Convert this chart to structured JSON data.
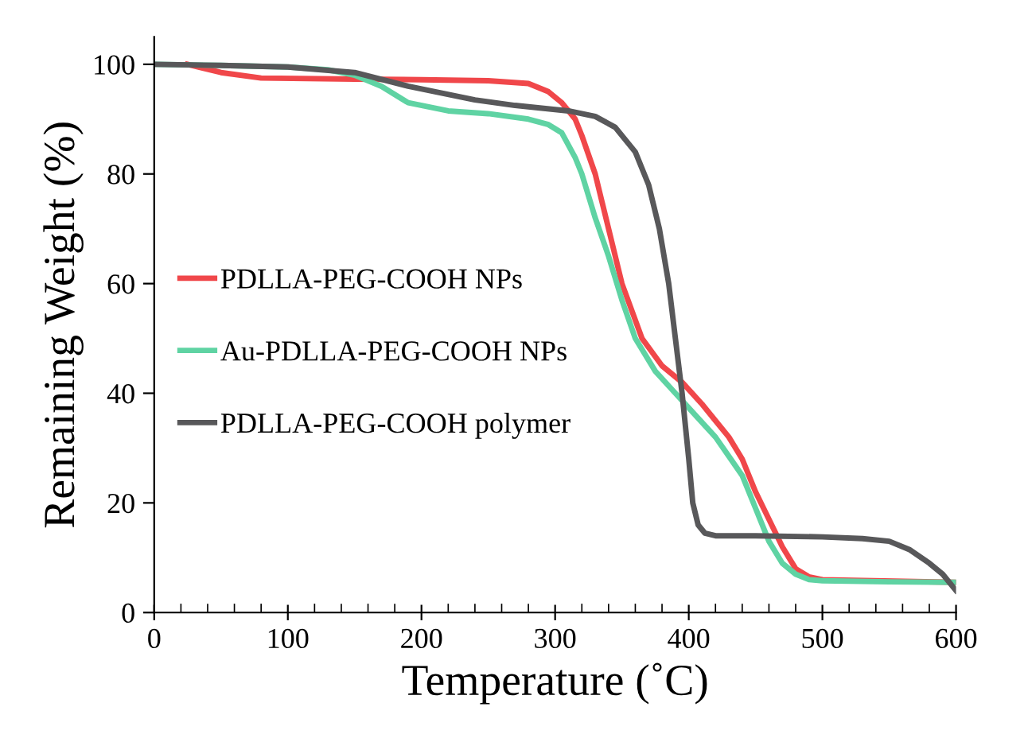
{
  "chart_data": {
    "type": "line",
    "xlabel": "Temperature (˚C)",
    "ylabel": "Remaining Weight (%)",
    "xlim": [
      0,
      600
    ],
    "ylim": [
      0,
      105
    ],
    "xticks": [
      0,
      100,
      200,
      300,
      400,
      500,
      600
    ],
    "yticks": [
      0,
      20,
      40,
      60,
      80,
      100
    ],
    "grid": false,
    "legend": "left",
    "marker": "none",
    "line_style": "solid",
    "series": [
      {
        "name": "PDLLA-PEG-COOH NPs",
        "color": "#f0474a",
        "x": [
          25,
          50,
          80,
          150,
          200,
          250,
          280,
          295,
          305,
          315,
          320,
          330,
          335,
          350,
          365,
          380,
          395,
          410,
          420,
          430,
          440,
          450,
          460,
          470,
          480,
          490,
          500,
          600
        ],
        "values": [
          100,
          98.5,
          97.5,
          97.3,
          97.2,
          97,
          96.5,
          95,
          93,
          90,
          87,
          80,
          75,
          60,
          50,
          45,
          42,
          38,
          35,
          32,
          28,
          22,
          17,
          12,
          8,
          6.5,
          6,
          5.5
        ]
      },
      {
        "name": "Au-PDLLA-PEG-COOH NPs",
        "color": "#5fd3a3",
        "x": [
          0,
          50,
          100,
          130,
          150,
          170,
          190,
          220,
          250,
          280,
          295,
          305,
          315,
          320,
          330,
          340,
          350,
          360,
          375,
          390,
          405,
          420,
          430,
          440,
          450,
          460,
          470,
          480,
          490,
          500,
          550,
          600
        ],
        "values": [
          100,
          99.8,
          99.5,
          99,
          98,
          96,
          93,
          91.5,
          91,
          90,
          89,
          87.5,
          83,
          80,
          72,
          65,
          57,
          50,
          44,
          40,
          36,
          32,
          28.5,
          25,
          19,
          13,
          9,
          7,
          6,
          5.8,
          5.6,
          5.5
        ]
      },
      {
        "name": "PDLLA-PEG-COOH polymer",
        "color": "#58585a",
        "x": [
          0,
          50,
          100,
          150,
          190,
          240,
          270,
          310,
          330,
          345,
          360,
          370,
          378,
          385,
          390,
          395,
          400,
          403,
          407,
          412,
          420,
          450,
          500,
          530,
          550,
          565,
          580,
          590,
          600
        ],
        "values": [
          100,
          99.8,
          99.5,
          98.5,
          96,
          93.5,
          92.5,
          91.5,
          90.5,
          88.5,
          84,
          78,
          70,
          60,
          50,
          40,
          28,
          20,
          16,
          14.5,
          14,
          14,
          13.8,
          13.5,
          13,
          11.5,
          9,
          7,
          4
        ]
      }
    ]
  }
}
